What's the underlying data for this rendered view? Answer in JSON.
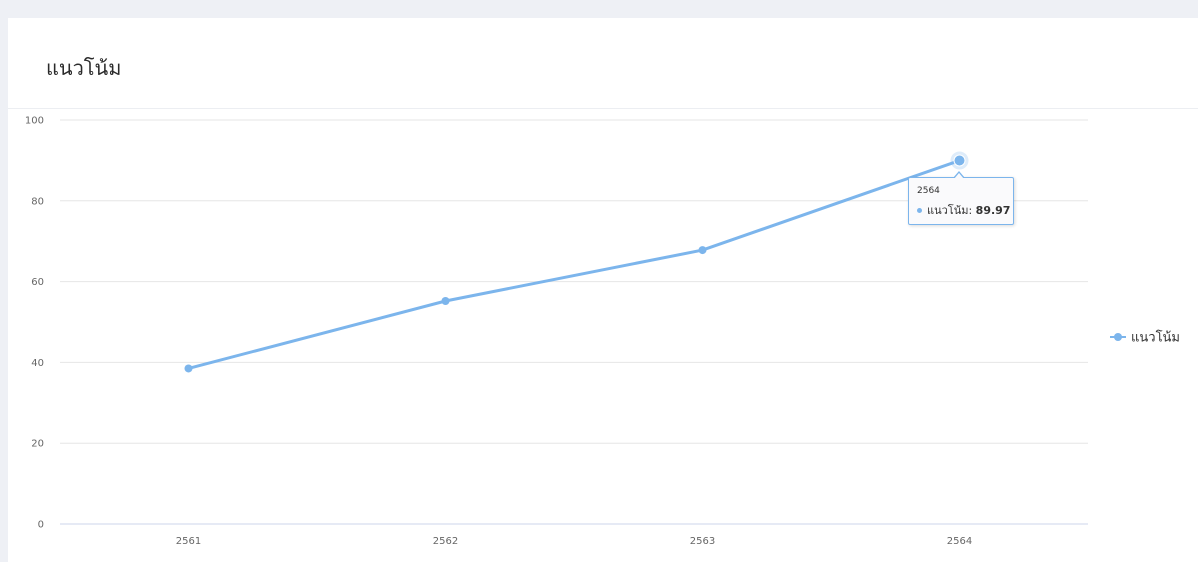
{
  "card": {
    "title": "แนวโน้ม"
  },
  "colors": {
    "series": "#7cb5ec",
    "grid": "#e6e6e6",
    "axis_label": "#666666"
  },
  "chart_data": {
    "type": "line",
    "title": "แนวโน้ม",
    "categories": [
      "2561",
      "2562",
      "2563",
      "2564"
    ],
    "series": [
      {
        "name": "แนวโน้ม",
        "values": [
          38.5,
          55.2,
          67.8,
          89.97
        ]
      }
    ],
    "ylim": [
      0,
      100
    ],
    "yticks": [
      0,
      20,
      40,
      60,
      80,
      100
    ],
    "grid": true,
    "legend": "right",
    "highlighted_point": {
      "category": "2564",
      "value": 89.97
    }
  },
  "tooltip": {
    "header": "2564",
    "series_label": "แนวโน้ม:",
    "value": "89.97"
  },
  "legend": {
    "label": "แนวโน้ม"
  }
}
